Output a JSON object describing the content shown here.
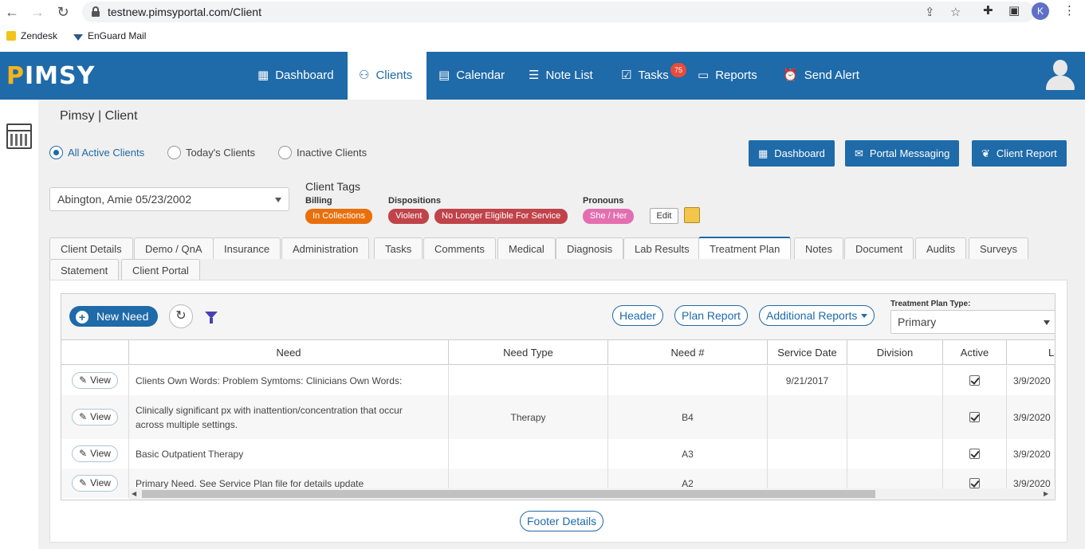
{
  "browser": {
    "url": "testnew.pimsyportal.com/Client",
    "profile_initial": "K",
    "bookmarks": [
      "Zendesk",
      "EnGuard Mail"
    ]
  },
  "app": {
    "logo": "PIMSY",
    "nav": [
      {
        "label": "Dashboard",
        "icon": "grid-icon"
      },
      {
        "label": "Clients",
        "icon": "user-icon"
      },
      {
        "label": "Calendar",
        "icon": "calendar-icon"
      },
      {
        "label": "Note List",
        "icon": "list-icon"
      },
      {
        "label": "Tasks",
        "icon": "tasks-icon",
        "badge": "75"
      },
      {
        "label": "Reports",
        "icon": "reports-icon"
      },
      {
        "label": "Send Alert",
        "icon": "alarm-icon"
      }
    ],
    "active_nav": "Clients"
  },
  "page": {
    "title": "Pimsy | Client",
    "filters": [
      {
        "label": "All Active Clients",
        "selected": true
      },
      {
        "label": "Today's Clients",
        "selected": false
      },
      {
        "label": "Inactive Clients",
        "selected": false
      }
    ],
    "action_buttons": [
      {
        "label": "Dashboard",
        "icon": "grid-icon"
      },
      {
        "label": "Portal Messaging",
        "icon": "envelope-icon"
      },
      {
        "label": "Client Report",
        "icon": "leaf-icon"
      }
    ],
    "client_select": "Abington, Amie 05/23/2002",
    "tags": {
      "title": "Client Tags",
      "billing_label": "Billing",
      "billing": [
        "In Collections"
      ],
      "dispositions_label": "Dispositions",
      "dispositions": [
        "Violent",
        "No Longer Eligible For Service"
      ],
      "pronouns_label": "Pronouns",
      "pronouns": [
        "She / Her"
      ],
      "edit_label": "Edit",
      "colors": {
        "billing": "#e8700c",
        "dispositions": "#c0434a",
        "pronouns": "#e36fb0"
      }
    },
    "tabs_row1": [
      "Client Details",
      "Demo / QnA",
      "Insurance",
      "Administration",
      "Tasks",
      "Comments",
      "Medical",
      "Diagnosis",
      "Lab Results",
      "Treatment Plan",
      "Notes",
      "Document",
      "Audits",
      "Surveys"
    ],
    "tabs_row2": [
      "Statement",
      "Client Portal"
    ],
    "active_tab": "Treatment Plan"
  },
  "treatment": {
    "new_need": "New Need",
    "header_btn": "Header",
    "plan_report_btn": "Plan Report",
    "additional_reports_btn": "Additional Reports",
    "plan_type_label": "Treatment Plan Type:",
    "plan_type_value": "Primary",
    "columns": [
      "",
      "Need",
      "Need Type",
      "Need #",
      "Service Date",
      "Division",
      "Active",
      "Las"
    ],
    "view_label": "View",
    "rows": [
      {
        "need": "Clients Own Words: Problem Symtoms: Clinicians Own Words:",
        "type": "",
        "num": "",
        "date": "9/21/2017",
        "division": "",
        "active": true,
        "last": "3/9/2020"
      },
      {
        "need": "Clinically significant px with inattention/concentration that occur across multiple settings.",
        "type": "Therapy",
        "num": "B4",
        "date": "",
        "division": "",
        "active": true,
        "last": "3/9/2020"
      },
      {
        "need": "Basic Outpatient Therapy",
        "type": "",
        "num": "A3",
        "date": "",
        "division": "",
        "active": true,
        "last": "3/9/2020"
      },
      {
        "need": "Primary Need. See Service Plan file for details update",
        "type": "",
        "num": "A2",
        "date": "",
        "division": "",
        "active": true,
        "last": "3/9/2020"
      }
    ],
    "footer_btn": "Footer Details"
  }
}
